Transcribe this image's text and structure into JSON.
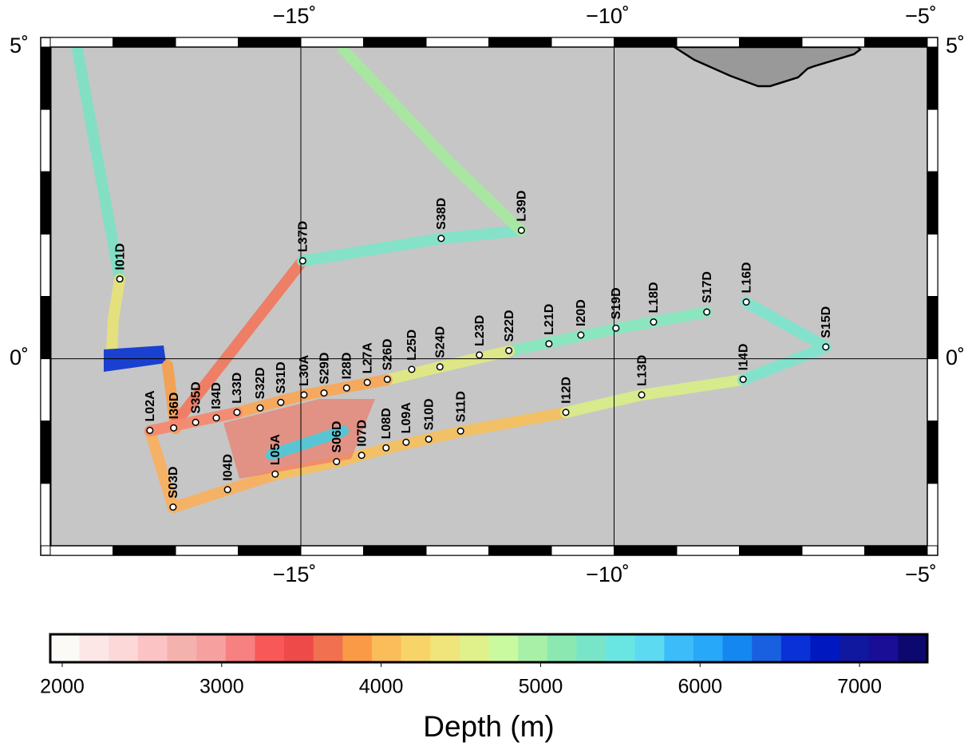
{
  "map": {
    "xlim": [
      -19,
      -5
    ],
    "ylim": [
      -3,
      5
    ],
    "xticks": [
      {
        "value": -15,
        "label": "−15˚"
      },
      {
        "value": -10,
        "label": "−10˚"
      },
      {
        "value": -5,
        "label": "−5˚"
      }
    ],
    "yticks": [
      {
        "value": 5,
        "label": "5˚"
      },
      {
        "value": 0,
        "label": "0˚"
      }
    ],
    "grid": true
  },
  "stations": [
    {
      "label": "I01D",
      "lon": -17.89,
      "lat": 1.28
    },
    {
      "label": "L37D",
      "lon": -14.97,
      "lat": 1.57
    },
    {
      "label": "S38D",
      "lon": -12.76,
      "lat": 1.93
    },
    {
      "label": "L39D",
      "lon": -11.48,
      "lat": 2.06
    },
    {
      "label": "L16D",
      "lon": -7.89,
      "lat": 0.91
    },
    {
      "label": "S17D",
      "lon": -8.52,
      "lat": 0.75
    },
    {
      "label": "L18D",
      "lon": -9.37,
      "lat": 0.59
    },
    {
      "label": "S19D",
      "lon": -9.97,
      "lat": 0.49
    },
    {
      "label": "I20D",
      "lon": -10.53,
      "lat": 0.38
    },
    {
      "label": "L21D",
      "lon": -11.04,
      "lat": 0.24
    },
    {
      "label": "S22D",
      "lon": -11.68,
      "lat": 0.13
    },
    {
      "label": "L23D",
      "lon": -12.15,
      "lat": 0.06
    },
    {
      "label": "S24D",
      "lon": -12.78,
      "lat": -0.13
    },
    {
      "label": "L25D",
      "lon": -13.23,
      "lat": -0.17
    },
    {
      "label": "S26D",
      "lon": -13.62,
      "lat": -0.33
    },
    {
      "label": "L27A",
      "lon": -13.94,
      "lat": -0.38
    },
    {
      "label": "I28D",
      "lon": -14.27,
      "lat": -0.47
    },
    {
      "label": "S29D",
      "lon": -14.63,
      "lat": -0.55
    },
    {
      "label": "L30A",
      "lon": -14.95,
      "lat": -0.58
    },
    {
      "label": "S31D",
      "lon": -15.32,
      "lat": -0.7
    },
    {
      "label": "S32D",
      "lon": -15.65,
      "lat": -0.79
    },
    {
      "label": "L33D",
      "lon": -16.02,
      "lat": -0.86
    },
    {
      "label": "I34D",
      "lon": -16.35,
      "lat": -0.95
    },
    {
      "label": "S35D",
      "lon": -16.68,
      "lat": -1.02
    },
    {
      "label": "I36D",
      "lon": -17.03,
      "lat": -1.11
    },
    {
      "label": "L02A",
      "lon": -17.41,
      "lat": -1.15
    },
    {
      "label": "S03D",
      "lon": -17.04,
      "lat": -2.38
    },
    {
      "label": "I04D",
      "lon": -16.17,
      "lat": -2.1
    },
    {
      "label": "L05A",
      "lon": -15.41,
      "lat": -1.85
    },
    {
      "label": "S06D",
      "lon": -14.43,
      "lat": -1.65
    },
    {
      "label": "I07D",
      "lon": -14.03,
      "lat": -1.55
    },
    {
      "label": "L08D",
      "lon": -13.64,
      "lat": -1.43
    },
    {
      "label": "L09A",
      "lon": -13.32,
      "lat": -1.34
    },
    {
      "label": "S10D",
      "lon": -12.96,
      "lat": -1.29
    },
    {
      "label": "S11D",
      "lon": -12.45,
      "lat": -1.16
    },
    {
      "label": "I12D",
      "lon": -10.77,
      "lat": -0.86
    },
    {
      "label": "L13D",
      "lon": -9.56,
      "lat": -0.58
    },
    {
      "label": "I14D",
      "lon": -7.94,
      "lat": -0.33
    },
    {
      "label": "S15D",
      "lon": -6.62,
      "lat": 0.19
    }
  ],
  "colorbar": {
    "title": "Depth (m)",
    "range": [
      1925,
      7425
    ],
    "ticks": [
      2000,
      3000,
      4000,
      5000,
      6000,
      7000
    ],
    "colors": [
      "#fcfaf7",
      "#fce6e6",
      "#fcd8d8",
      "#fbc3c3",
      "#f4b2ae",
      "#f7a0a0",
      "#f78080",
      "#f85858",
      "#ee4a4a",
      "#f07050",
      "#fb9a46",
      "#fbbc5a",
      "#f8d468",
      "#efe57a",
      "#e0f08a",
      "#cafaa0",
      "#a8f0a8",
      "#8ae8b0",
      "#78e4c8",
      "#6ae6e2",
      "#5cdaf2",
      "#3cbcf8",
      "#28a8f8",
      "#1488f0",
      "#1860e0",
      "#0a30d8",
      "#0018c0",
      "#1018a0",
      "#1a0e96",
      "#0c0870"
    ]
  }
}
